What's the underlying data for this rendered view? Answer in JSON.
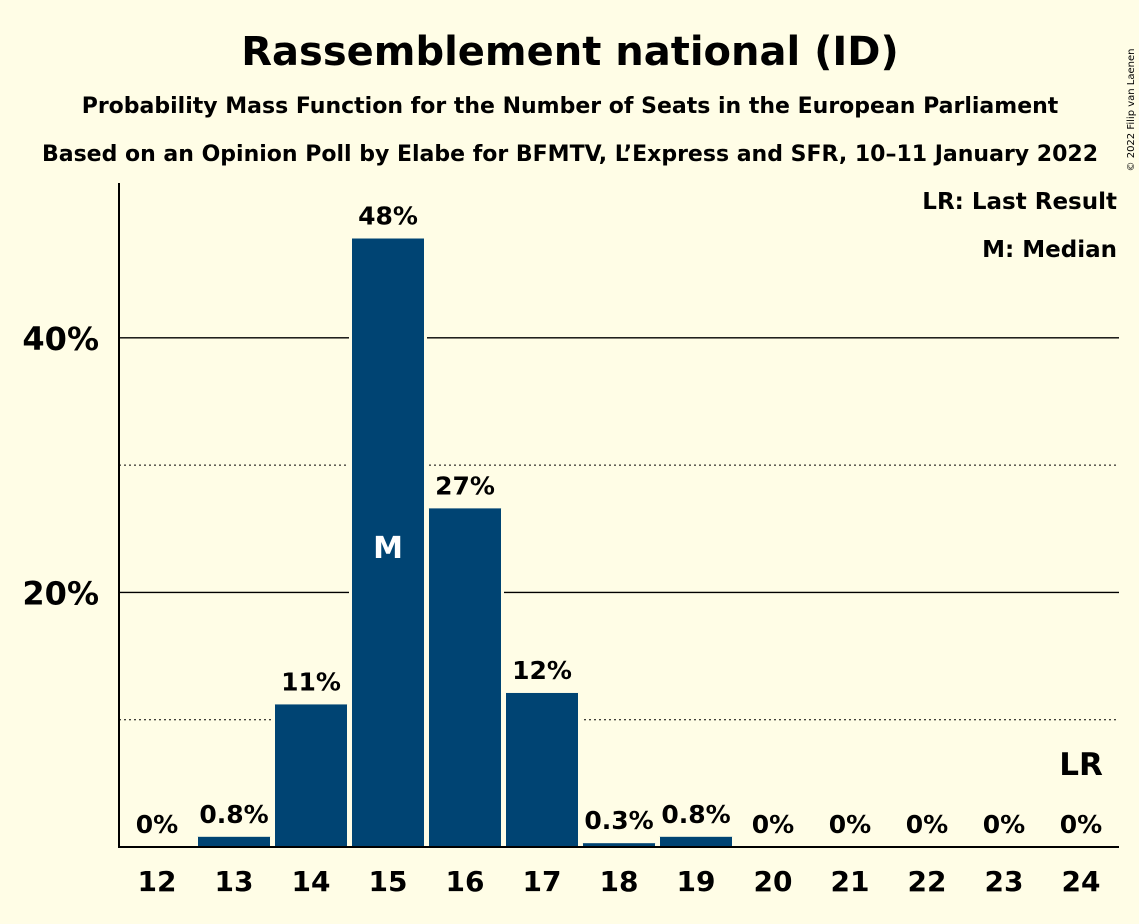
{
  "chart_data": {
    "type": "bar",
    "title": "Rassemblement national (ID)",
    "subtitle": "Probability Mass Function for the Number of Seats in the European Parliament",
    "subtitle2": "Based on an Opinion Poll by Elabe for BFMTV, L’Express and SFR, 10–11 January 2022",
    "copyright": "© 2022 Filip van Laenen",
    "legend": {
      "lr": "LR: Last Result",
      "median": "M: Median",
      "placement": "top-right"
    },
    "categories": [
      "12",
      "13",
      "14",
      "15",
      "16",
      "17",
      "18",
      "19",
      "20",
      "21",
      "22",
      "23",
      "24"
    ],
    "values": [
      0,
      0.8,
      11.2,
      47.8,
      26.6,
      12.1,
      0.3,
      0.8,
      0,
      0,
      0,
      0,
      0
    ],
    "data_labels": [
      "0%",
      "0.8%",
      "11%",
      "48%",
      "27%",
      "12%",
      "0.3%",
      "0.8%",
      "0%",
      "0%",
      "0%",
      "0%",
      "0%"
    ],
    "median": {
      "category": "15",
      "label": "M"
    },
    "last_result": {
      "category": "24",
      "label": "LR"
    },
    "ylim": [
      0,
      52
    ],
    "yticks": [
      {
        "value": 20,
        "label": "20%",
        "style": "solid"
      },
      {
        "value": 40,
        "label": "40%",
        "style": "solid"
      }
    ],
    "ygrid_minor": [
      10,
      30
    ],
    "grid": true,
    "colors": {
      "bar": "#004473",
      "background": "#fffde6",
      "axis": "#000000"
    }
  }
}
